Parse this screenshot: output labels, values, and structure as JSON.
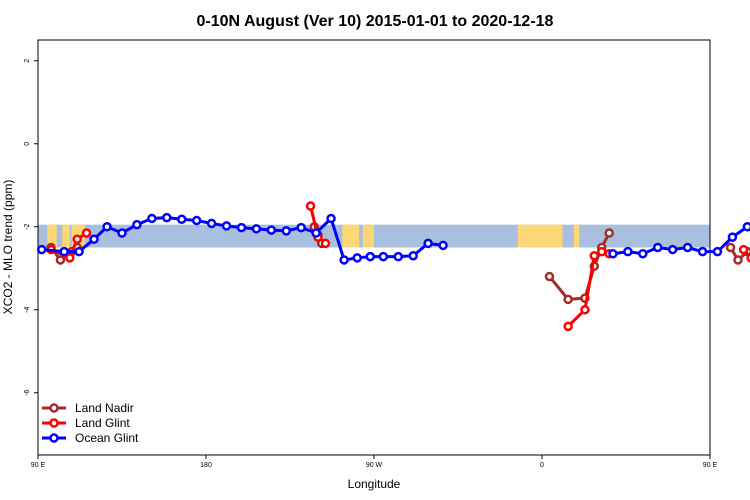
{
  "chart_data": {
    "type": "line",
    "title": "0-10N August (Ver 10)   2015-01-01 to 2020-12-18",
    "xlabel": "Longitude",
    "ylabel": "XCO2 - MLO trend (ppm)",
    "xlim": [
      90,
      450
    ],
    "ylim": [
      -7.5,
      2.5
    ],
    "x_ticks": [
      {
        "value": 90,
        "label": "90 E"
      },
      {
        "value": 180,
        "label": "180"
      },
      {
        "value": 270,
        "label": "90 W"
      },
      {
        "value": 360,
        "label": "0"
      },
      {
        "value": 450,
        "label": "90 E"
      },
      {
        "value": 540,
        "label": "180"
      }
    ],
    "y_ticks": [
      {
        "value": 2,
        "label": "2"
      },
      {
        "value": 0,
        "label": "0"
      },
      {
        "value": -2,
        "label": "-2"
      },
      {
        "value": -4,
        "label": "-4"
      },
      {
        "value": -6,
        "label": "-6"
      }
    ],
    "map_band": {
      "y_range": [
        -2.5,
        -1.95
      ],
      "ocean_color": "#a8bfdf",
      "land_color": "#fdd775",
      "land_spans_lon": [
        [
          95,
          100
        ],
        [
          103,
          107
        ],
        [
          108,
          115
        ],
        [
          253,
          262
        ],
        [
          264,
          270
        ],
        [
          347,
          371
        ],
        [
          377,
          380
        ],
        [
          452,
          455
        ],
        [
          468,
          477
        ],
        [
          482,
          491
        ]
      ]
    },
    "legend_position": "bottom-left",
    "series": [
      {
        "name": "Land Nadir",
        "color": "#a52a2a",
        "segments": [
          [
            [
              97,
              -2.5
            ],
            [
              102,
              -2.8
            ],
            [
              108,
              -2.6
            ],
            [
              111,
              -2.5
            ]
          ],
          [
            [
              238,
              -2.0
            ],
            [
              240,
              -2.2
            ],
            [
              242,
              -2.4
            ]
          ],
          [
            [
              364,
              -3.2
            ],
            [
              374,
              -3.75
            ],
            [
              383,
              -3.72
            ],
            [
              388,
              -2.95
            ],
            [
              392,
              -2.5
            ],
            [
              396,
              -2.15
            ]
          ],
          [
            [
              461,
              -2.5
            ],
            [
              465,
              -2.8
            ],
            [
              470,
              -2.6
            ],
            [
              474,
              -2.5
            ]
          ]
        ]
      },
      {
        "name": "Land Glint",
        "color": "#ff0000",
        "segments": [
          [
            [
              97,
              -2.55
            ],
            [
              107,
              -2.75
            ],
            [
              111,
              -2.3
            ],
            [
              116,
              -2.15
            ]
          ],
          [
            [
              236,
              -1.5
            ],
            [
              240,
              -2.25
            ],
            [
              244,
              -2.4
            ]
          ],
          [
            [
              374,
              -4.4
            ],
            [
              383,
              -4.0
            ],
            [
              388,
              -2.7
            ],
            [
              392,
              -2.6
            ],
            [
              396,
              -2.65
            ]
          ],
          [
            [
              468,
              -2.55
            ],
            [
              472,
              -2.75
            ],
            [
              477,
              -2.15
            ]
          ]
        ]
      },
      {
        "name": "Ocean Glint",
        "color": "#0000ff",
        "segments": [
          [
            [
              92,
              -2.55
            ],
            [
              104,
              -2.6
            ],
            [
              112,
              -2.6
            ],
            [
              120,
              -2.3
            ],
            [
              127,
              -2.0
            ],
            [
              135,
              -2.15
            ],
            [
              143,
              -1.95
            ],
            [
              151,
              -1.8
            ],
            [
              159,
              -1.78
            ],
            [
              167,
              -1.82
            ],
            [
              175,
              -1.85
            ],
            [
              183,
              -1.92
            ],
            [
              191,
              -1.98
            ],
            [
              199,
              -2.02
            ],
            [
              207,
              -2.05
            ],
            [
              215,
              -2.08
            ],
            [
              223,
              -2.1
            ],
            [
              231,
              -2.02
            ],
            [
              239,
              -2.15
            ],
            [
              247,
              -1.8
            ],
            [
              254,
              -2.8
            ],
            [
              261,
              -2.75
            ],
            [
              268,
              -2.72
            ],
            [
              275,
              -2.72
            ],
            [
              283,
              -2.72
            ],
            [
              291,
              -2.7
            ],
            [
              299,
              -2.4
            ],
            [
              307,
              -2.45
            ]
          ],
          [
            [
              398,
              -2.65
            ],
            [
              406,
              -2.6
            ],
            [
              414,
              -2.65
            ],
            [
              422,
              -2.5
            ],
            [
              430,
              -2.55
            ],
            [
              438,
              -2.5
            ],
            [
              446,
              -2.6
            ],
            [
              454,
              -2.6
            ],
            [
              462,
              -2.25
            ],
            [
              470,
              -2.0
            ],
            [
              478,
              -2.15
            ],
            [
              486,
              -1.92
            ],
            [
              494,
              -1.78
            ],
            [
              502,
              -1.75
            ]
          ]
        ]
      }
    ]
  }
}
